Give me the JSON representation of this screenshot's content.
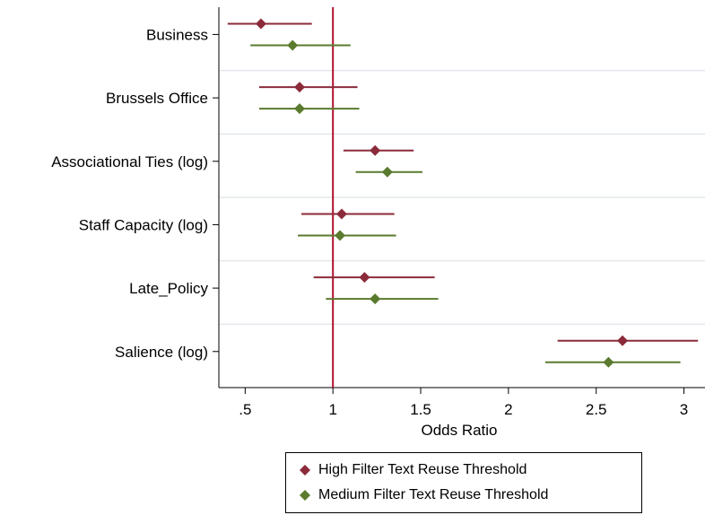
{
  "chart_data": {
    "type": "scatter",
    "subtype": "coefficient-plot",
    "xlabel": "Odds Ratio",
    "xlim": [
      0.35,
      3.12
    ],
    "xticks": [
      0.5,
      1,
      1.5,
      2,
      2.5,
      3
    ],
    "xtick_labels": [
      ".5",
      "1",
      "1.5",
      "2",
      "2.5",
      "3"
    ],
    "reference_line": 1,
    "categories": [
      "Business",
      "Brussels Office",
      "Associational Ties (log)",
      "Staff Capacity (log)",
      "Late_Policy",
      "Salience (log)"
    ],
    "series": [
      {
        "name": "High Filter Text Reuse Threshold",
        "color": "#8b2b3a",
        "estimates": [
          0.59,
          0.81,
          1.24,
          1.05,
          1.18,
          2.65
        ],
        "ci_low": [
          0.4,
          0.58,
          1.06,
          0.82,
          0.89,
          2.28
        ],
        "ci_high": [
          0.88,
          1.14,
          1.46,
          1.35,
          1.58,
          3.08
        ]
      },
      {
        "name": "Medium Filter Text Reuse Threshold",
        "color": "#5a7a2e",
        "estimates": [
          0.77,
          0.81,
          1.31,
          1.04,
          1.24,
          2.57
        ],
        "ci_low": [
          0.53,
          0.58,
          1.13,
          0.8,
          0.96,
          2.21
        ],
        "ci_high": [
          1.1,
          1.15,
          1.51,
          1.36,
          1.6,
          2.98
        ]
      }
    ],
    "reference_line_color": "#b0122e",
    "grid": "horizontal-light",
    "legend_position": "bottom"
  }
}
